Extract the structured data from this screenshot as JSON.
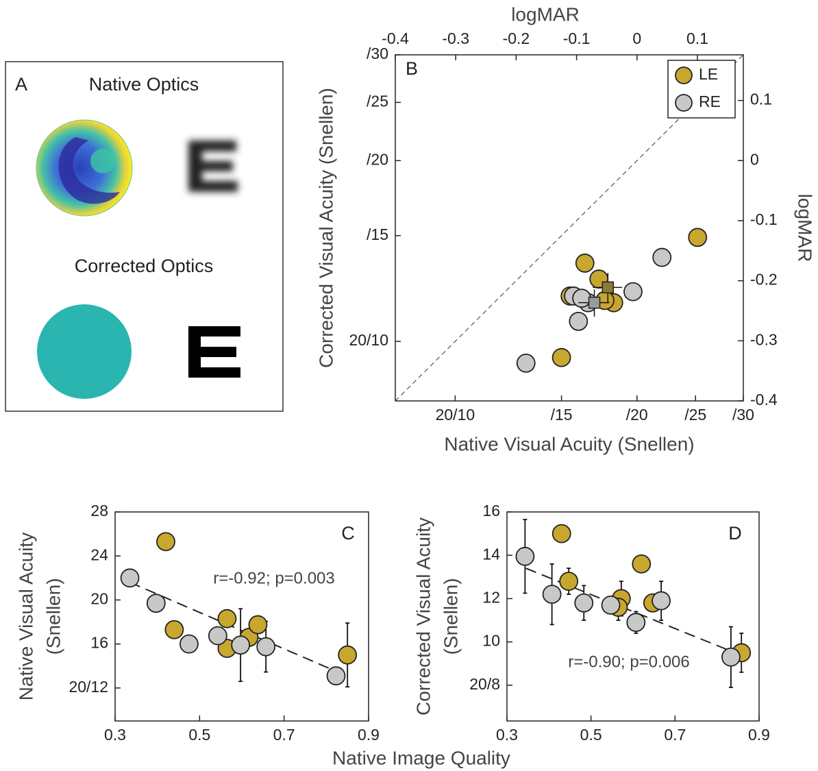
{
  "panel_a": {
    "label": "A",
    "native_title": "Native Optics",
    "corrected_title": "Corrected Optics"
  },
  "shared_xlabel": "Native Image Quality",
  "chart_data": [
    {
      "type": "scatter",
      "panel_label": "B",
      "xlabel": "Native Visual Acuity (Snellen)",
      "ylabel": "Corrected Visual Acuity (Snellen)",
      "x2label": "logMAR",
      "y2label": "logMAR",
      "xscale": "log",
      "yscale": "log",
      "xlim": [
        7.96,
        30
      ],
      "ylim": [
        7.96,
        30
      ],
      "xticks": [
        {
          "value": 10,
          "label": "20/10"
        },
        {
          "value": 15,
          "label": "/15"
        },
        {
          "value": 20,
          "label": "/20"
        },
        {
          "value": 25,
          "label": "/25"
        },
        {
          "value": 30,
          "label": "/30"
        }
      ],
      "yticks": [
        {
          "value": 10,
          "label": "20/10"
        },
        {
          "value": 15,
          "label": "/15"
        },
        {
          "value": 20,
          "label": "/20"
        },
        {
          "value": 25,
          "label": "/25"
        },
        {
          "value": 30,
          "label": "/30"
        }
      ],
      "x2lim": [
        -0.4,
        0.176
      ],
      "x2ticks": [
        -0.4,
        -0.3,
        -0.2,
        -0.1,
        0,
        0.1
      ],
      "y2lim": [
        -0.4,
        0.176
      ],
      "y2ticks": [
        -0.4,
        -0.3,
        -0.2,
        -0.1,
        0,
        0.1
      ],
      "identity_line": true,
      "legend": "upper right",
      "series": [
        {
          "name": "LE",
          "color": "#c8a72e",
          "x": [
            25.2,
            16.4,
            17.3,
            15.5,
            18.3,
            17.7,
            15.0
          ],
          "values": [
            14.9,
            13.5,
            12.7,
            11.9,
            11.6,
            11.7,
            9.4
          ]
        },
        {
          "name": "RE",
          "color": "#c8c8c8",
          "x": [
            22.0,
            19.7,
            15.7,
            16.6,
            16.2,
            16.0,
            13.1
          ],
          "values": [
            13.8,
            12.1,
            11.9,
            11.6,
            11.8,
            10.8,
            9.2
          ]
        }
      ],
      "means": [
        {
          "color": "#8b7a38",
          "x": 17.9,
          "y": 12.3,
          "xerr": 1.0,
          "yerr": 0.7
        },
        {
          "color": "#9a9a9a",
          "x": 17.0,
          "y": 11.6,
          "xerr": 1.0,
          "yerr": 0.6
        }
      ]
    },
    {
      "type": "scatter",
      "panel_label": "C",
      "ylabel": [
        "Native Visual Acuity",
        "(Snellen)"
      ],
      "xlim": [
        0.3,
        0.9
      ],
      "xticks": [
        0.3,
        0.5,
        0.7,
        0.9
      ],
      "ylim": [
        9,
        28
      ],
      "yticks": [
        {
          "value": 12,
          "label": "20/12"
        },
        16,
        20,
        24,
        28
      ],
      "annotation": "r=-0.92; p=0.003",
      "fit": {
        "x": [
          0.335,
          0.83
        ],
        "y": [
          21.6,
          13.4
        ]
      },
      "series": [
        {
          "name": "LE",
          "color": "#c8a72e",
          "x": [
            0.42,
            0.44,
            0.565,
            0.565,
            0.617,
            0.638,
            0.85
          ],
          "values": [
            25.3,
            17.3,
            18.3,
            15.6,
            16.6,
            17.75,
            15.0
          ],
          "errors": [
            0.3,
            0.3,
            0.3,
            0.3,
            0.5,
            0.5,
            2.9
          ]
        },
        {
          "name": "RE",
          "color": "#c8c8c8",
          "x": [
            0.335,
            0.397,
            0.475,
            0.543,
            0.597,
            0.657,
            0.823
          ],
          "values": [
            22.0,
            19.7,
            16.0,
            16.75,
            15.9,
            15.75,
            13.1
          ],
          "errors": [
            0.6,
            0.3,
            0.3,
            0.3,
            3.3,
            2.3,
            0.3
          ]
        }
      ]
    },
    {
      "type": "scatter",
      "panel_label": "D",
      "ylabel": [
        "Corrected Visual Acuity",
        "(Snellen)"
      ],
      "xlim": [
        0.3,
        0.9
      ],
      "xticks": [
        0.3,
        0.5,
        0.7,
        0.9
      ],
      "ylim": [
        6.35,
        16
      ],
      "yticks": [
        {
          "value": 8,
          "label": "20/8"
        },
        10,
        12,
        14,
        16
      ],
      "annotation": "r=-0.90; p=0.006",
      "fit": {
        "x": [
          0.345,
          0.83
        ],
        "y": [
          13.4,
          9.6
        ]
      },
      "series": [
        {
          "name": "LE",
          "color": "#c8a72e",
          "x": [
            0.43,
            0.447,
            0.572,
            0.565,
            0.62,
            0.647,
            0.858
          ],
          "values": [
            15.0,
            12.8,
            12.0,
            11.6,
            13.6,
            11.8,
            9.5
          ],
          "errors": [
            0.2,
            0.6,
            0.8,
            0.6,
            0.2,
            0.3,
            0.9
          ]
        },
        {
          "name": "RE",
          "color": "#c8c8c8",
          "x": [
            0.343,
            0.407,
            0.483,
            0.547,
            0.607,
            0.667,
            0.833
          ],
          "values": [
            13.95,
            12.2,
            11.8,
            11.7,
            10.9,
            11.9,
            9.3
          ],
          "errors": [
            1.7,
            1.4,
            0.8,
            0.3,
            0.5,
            0.9,
            1.4
          ]
        }
      ]
    }
  ]
}
